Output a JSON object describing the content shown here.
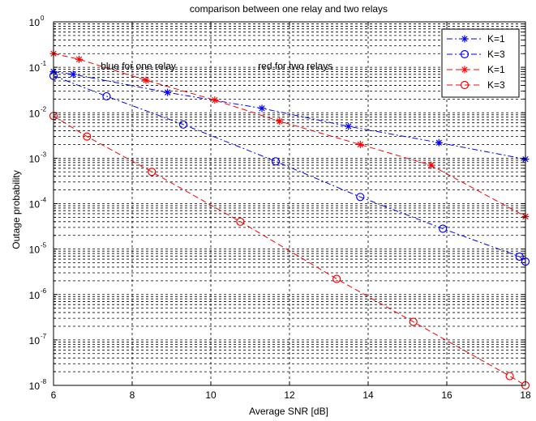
{
  "chart_data": {
    "type": "line",
    "title": "comparison between one relay and two relays",
    "xlabel": "Average SNR [dB]",
    "ylabel": "Outage probability",
    "xlim": [
      6,
      18
    ],
    "ylim_log10": [
      -8,
      0
    ],
    "y_scale": "log",
    "grid": true,
    "legend_position": "top-right",
    "x_ticks": [
      "6",
      "8",
      "10",
      "12",
      "14",
      "16",
      "18"
    ],
    "y_ticks": [
      {
        "base": "10",
        "exp": "0"
      },
      {
        "base": "10",
        "exp": "-1"
      },
      {
        "base": "10",
        "exp": "-2"
      },
      {
        "base": "10",
        "exp": "-3"
      },
      {
        "base": "10",
        "exp": "-4"
      },
      {
        "base": "10",
        "exp": "-5"
      },
      {
        "base": "10",
        "exp": "-6"
      },
      {
        "base": "10",
        "exp": "-7"
      },
      {
        "base": "10",
        "exp": "-8"
      }
    ],
    "annotations": [
      {
        "text": "blue for one relay",
        "x": 7.2,
        "y": 0.09
      },
      {
        "text": "red for two relays",
        "x": 11.2,
        "y": 0.09
      }
    ],
    "series": [
      {
        "name": "K=1",
        "color": "#0000ff",
        "dash": "dashdot",
        "marker": "star",
        "x": [
          6,
          6.5,
          8.9,
          11.3,
          13.5,
          15.8,
          18
        ],
        "y": [
          0.08,
          0.07,
          0.028,
          0.0125,
          0.005,
          0.0022,
          0.00095
        ]
      },
      {
        "name": "K=3",
        "color": "#0000ff",
        "dash": "dashdot",
        "marker": "circle",
        "x": [
          6,
          7.35,
          9.3,
          11.65,
          13.8,
          15.9,
          17.85,
          18
        ],
        "y": [
          0.065,
          0.023,
          0.0055,
          0.00085,
          0.00014,
          2.8e-05,
          6.8e-06,
          5.3e-06
        ]
      },
      {
        "name": "K=1",
        "color": "#ff0000",
        "dash": "dash",
        "marker": "star",
        "x": [
          6,
          6.65,
          8.35,
          10.1,
          11.75,
          13.8,
          15.6,
          18
        ],
        "y": [
          0.2,
          0.15,
          0.052,
          0.019,
          0.0065,
          0.002,
          0.0007,
          5.2e-05
        ]
      },
      {
        "name": "K=3",
        "color": "#ff0000",
        "dash": "dash",
        "marker": "circle",
        "x": [
          6,
          6.85,
          8.5,
          10.75,
          13.2,
          15.15,
          17.6,
          18
        ],
        "y": [
          0.0085,
          0.003,
          0.0005,
          4e-05,
          2.2e-06,
          2.5e-07,
          1.6e-08,
          1e-08
        ]
      }
    ]
  }
}
